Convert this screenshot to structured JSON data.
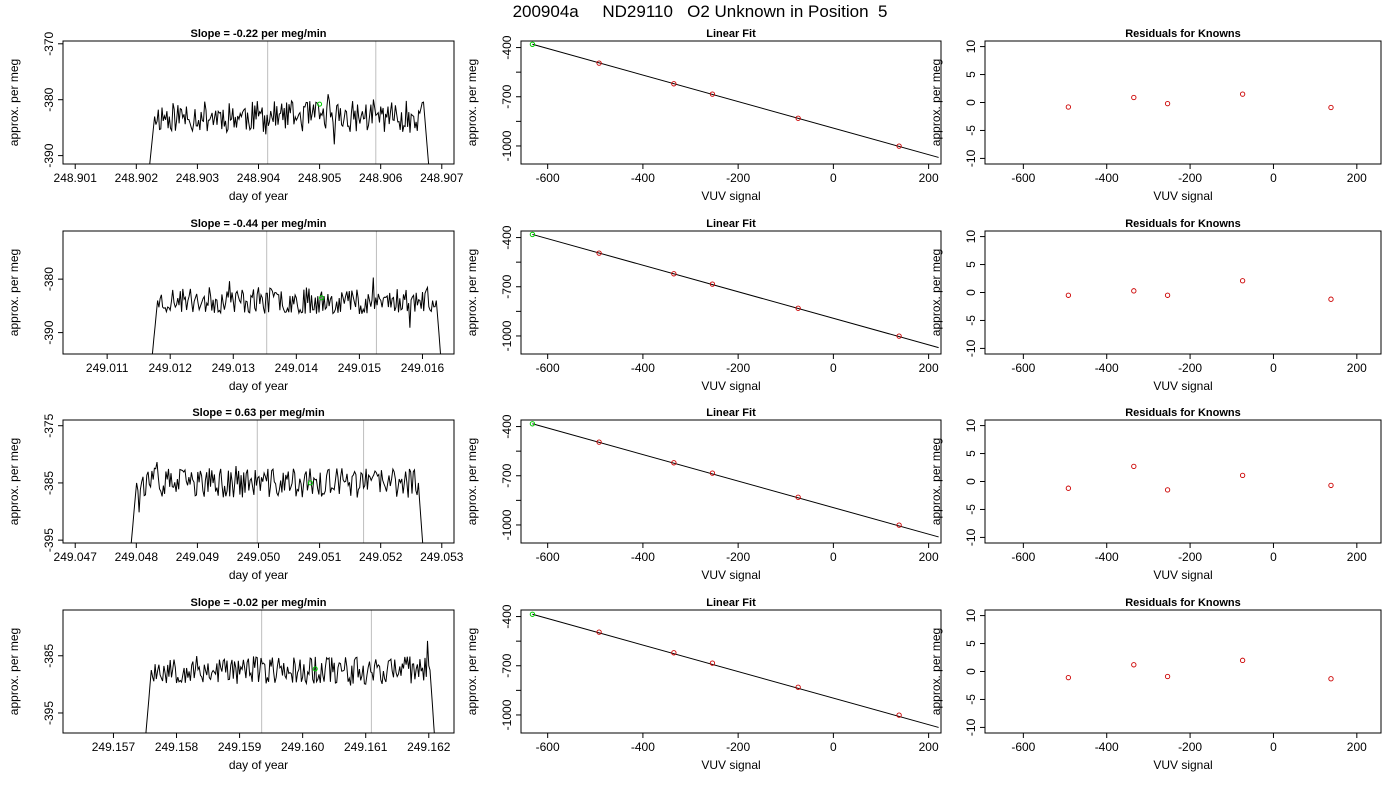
{
  "main_title": "200904a     ND29110   O2 Unknown in Position  5",
  "colors": {
    "trace": "#000000",
    "marker_green": "#00cc00",
    "known": "#cc0000",
    "vline": "#bebebe"
  },
  "chart_data": [
    {
      "type": "line",
      "row": 0,
      "col": 0,
      "title": "Slope =  -0.22  per meg/min",
      "xlabel": "day of year",
      "ylabel": "approx. per meg",
      "xlim": [
        248.9008,
        248.9072
      ],
      "ylim": [
        -391.5,
        -369.5
      ],
      "xticks": [
        248.901,
        248.902,
        248.903,
        248.904,
        248.905,
        248.906,
        248.907
      ],
      "xtick_labels": [
        "248.901",
        "248.902",
        "248.903",
        "248.904",
        "248.905",
        "248.906",
        "248.907"
      ],
      "yticks": [
        -370,
        -380,
        -390
      ],
      "ytick_labels": [
        "-370",
        "-380",
        "-390"
      ],
      "x_start": 248.9022,
      "x_end": 248.9068,
      "y_base": -383,
      "y_amp": 2.8,
      "seed": 11,
      "vlines": [
        248.90415,
        248.90592
      ],
      "highlight": {
        "x": 248.905,
        "y": -380.8
      }
    },
    {
      "type": "scatter",
      "row": 0,
      "col": 1,
      "title": "Linear Fit",
      "xlabel": "VUV signal",
      "ylabel": "approx. per meg",
      "xlim": [
        -656,
        226
      ],
      "ylim": [
        -1110,
        -360
      ],
      "xticks": [
        -600,
        -400,
        -200,
        0,
        200
      ],
      "xtick_labels": [
        "-600",
        "-400",
        "-200",
        "0",
        "200"
      ],
      "yticks": [
        -400,
        -700,
        -1000
      ],
      "ytick_labels": [
        "-400",
        "-700",
        "-1000"
      ],
      "minor_yticks": [
        -550,
        -850
      ],
      "fit_line": [
        [
          -632,
          -380
        ],
        [
          221,
          -1070
        ]
      ],
      "knowns": [
        [
          -492,
          -495
        ],
        [
          -335,
          -621
        ],
        [
          -254,
          -684
        ],
        [
          -74,
          -831
        ],
        [
          138,
          -1001
        ]
      ],
      "unknown": [
        -632,
        -380
      ]
    },
    {
      "type": "scatter",
      "row": 0,
      "col": 2,
      "title": "Residuals for Knowns",
      "xlabel": "VUV signal",
      "ylabel": "approx. per meg",
      "xlim": [
        -692,
        258
      ],
      "ylim": [
        -11,
        11
      ],
      "xticks": [
        -600,
        -400,
        -200,
        0,
        200
      ],
      "xtick_labels": [
        "-600",
        "-400",
        "-200",
        "0",
        "200"
      ],
      "yticks": [
        -10,
        -5,
        0,
        5,
        10
      ],
      "ytick_labels": [
        "-10",
        "-5",
        "0",
        "5",
        "10"
      ],
      "points": [
        [
          -492,
          -0.8
        ],
        [
          -335,
          0.9
        ],
        [
          -254,
          -0.2
        ],
        [
          -74,
          1.5
        ],
        [
          138,
          -0.9
        ]
      ]
    },
    {
      "type": "line",
      "row": 1,
      "col": 0,
      "title": "Slope =  -0.44  per meg/min",
      "xlabel": "day of year",
      "ylabel": "approx. per meg",
      "xlim": [
        249.0103,
        249.0165
      ],
      "ylim": [
        -394,
        -371
      ],
      "xticks": [
        249.011,
        249.012,
        249.013,
        249.014,
        249.015,
        249.016
      ],
      "xtick_labels": [
        "249.011",
        "249.012",
        "249.013",
        "249.014",
        "249.015",
        "249.016"
      ],
      "yticks": [
        -380,
        -390
      ],
      "ytick_labels": [
        "-380",
        "-390"
      ],
      "x_start": 249.0117,
      "x_end": 249.0163,
      "y_base": -384,
      "y_amp": 2.5,
      "seed": 23,
      "vlines": [
        249.01353,
        249.01527
      ],
      "highlight": {
        "x": 249.0144,
        "y": -383.5
      }
    },
    {
      "type": "scatter",
      "row": 1,
      "col": 1,
      "title": "Linear Fit",
      "xlabel": "VUV signal",
      "ylabel": "approx. per meg",
      "xlim": [
        -656,
        226
      ],
      "ylim": [
        -1110,
        -360
      ],
      "xticks": [
        -600,
        -400,
        -200,
        0,
        200
      ],
      "xtick_labels": [
        "-600",
        "-400",
        "-200",
        "0",
        "200"
      ],
      "yticks": [
        -400,
        -700,
        -1000
      ],
      "ytick_labels": [
        "-400",
        "-700",
        "-1000"
      ],
      "minor_yticks": [
        -550,
        -850
      ],
      "fit_line": [
        [
          -632,
          -381
        ],
        [
          221,
          -1071
        ]
      ],
      "knowns": [
        [
          -492,
          -495
        ],
        [
          -335,
          -621
        ],
        [
          -254,
          -684
        ],
        [
          -74,
          -831
        ],
        [
          138,
          -1001
        ]
      ],
      "unknown": [
        -632,
        -381
      ]
    },
    {
      "type": "scatter",
      "row": 1,
      "col": 2,
      "title": "Residuals for Knowns",
      "xlabel": "VUV signal",
      "ylabel": "approx. per meg",
      "xlim": [
        -692,
        258
      ],
      "ylim": [
        -11,
        11
      ],
      "xticks": [
        -600,
        -400,
        -200,
        0,
        200
      ],
      "xtick_labels": [
        "-600",
        "-400",
        "-200",
        "0",
        "200"
      ],
      "yticks": [
        -10,
        -5,
        0,
        5,
        10
      ],
      "ytick_labels": [
        "-10",
        "-5",
        "0",
        "5",
        "10"
      ],
      "points": [
        [
          -492,
          -0.5
        ],
        [
          -335,
          0.3
        ],
        [
          -254,
          -0.5
        ],
        [
          -74,
          2.1
        ],
        [
          138,
          -1.2
        ]
      ]
    },
    {
      "type": "line",
      "row": 2,
      "col": 0,
      "title": "Slope =  0.63  per meg/min",
      "xlabel": "day of year",
      "ylabel": "approx. per meg",
      "xlim": [
        249.0468,
        249.0532
      ],
      "ylim": [
        -395.5,
        -374
      ],
      "xticks": [
        249.047,
        249.048,
        249.049,
        249.05,
        249.051,
        249.052,
        249.053
      ],
      "xtick_labels": [
        "249.047",
        "249.048",
        "249.049",
        "249.050",
        "249.051",
        "249.052",
        "249.053"
      ],
      "yticks": [
        -375,
        -385,
        -395
      ],
      "ytick_labels": [
        "-375",
        "-385",
        "-395"
      ],
      "x_start": 249.0479,
      "x_end": 249.0527,
      "y_base": -385,
      "y_amp": 2.6,
      "seed": 37,
      "vlines": [
        249.04998,
        249.05172
      ],
      "highlight": {
        "x": 249.05085,
        "y": -385
      }
    },
    {
      "type": "scatter",
      "row": 2,
      "col": 1,
      "title": "Linear Fit",
      "xlabel": "VUV signal",
      "ylabel": "approx. per meg",
      "xlim": [
        -656,
        226
      ],
      "ylim": [
        -1110,
        -360
      ],
      "xticks": [
        -600,
        -400,
        -200,
        0,
        200
      ],
      "xtick_labels": [
        "-600",
        "-400",
        "-200",
        "0",
        "200"
      ],
      "yticks": [
        -400,
        -700,
        -1000
      ],
      "ytick_labels": [
        "-400",
        "-700",
        "-1000"
      ],
      "minor_yticks": [
        -550,
        -850
      ],
      "fit_line": [
        [
          -632,
          -383
        ],
        [
          221,
          -1073
        ]
      ],
      "knowns": [
        [
          -492,
          -495
        ],
        [
          -335,
          -621
        ],
        [
          -254,
          -684
        ],
        [
          -74,
          -831
        ],
        [
          138,
          -1001
        ]
      ],
      "unknown": [
        -632,
        -383
      ]
    },
    {
      "type": "scatter",
      "row": 2,
      "col": 2,
      "title": "Residuals for Knowns",
      "xlabel": "VUV signal",
      "ylabel": "approx. per meg",
      "xlim": [
        -692,
        258
      ],
      "ylim": [
        -11,
        11
      ],
      "xticks": [
        -600,
        -400,
        -200,
        0,
        200
      ],
      "xtick_labels": [
        "-600",
        "-400",
        "-200",
        "0",
        "200"
      ],
      "yticks": [
        -10,
        -5,
        0,
        5,
        10
      ],
      "ytick_labels": [
        "-10",
        "-5",
        "0",
        "5",
        "10"
      ],
      "points": [
        [
          -492,
          -1.2
        ],
        [
          -335,
          2.7
        ],
        [
          -254,
          -1.5
        ],
        [
          -74,
          1.1
        ],
        [
          138,
          -0.7
        ]
      ]
    },
    {
      "type": "line",
      "row": 3,
      "col": 0,
      "title": "Slope =  -0.02  per meg/min",
      "xlabel": "day of year",
      "ylabel": "approx. per meg",
      "xlim": [
        249.1562,
        249.1624
      ],
      "ylim": [
        -398.5,
        -377
      ],
      "xticks": [
        249.157,
        249.158,
        249.159,
        249.16,
        249.161,
        249.162
      ],
      "xtick_labels": [
        "249.157",
        "249.158",
        "249.159",
        "249.160",
        "249.161",
        "249.162"
      ],
      "yticks": [
        -385,
        -395
      ],
      "ytick_labels": [
        "-385",
        "-395"
      ],
      "x_start": 249.1575,
      "x_end": 249.1621,
      "y_base": -387.5,
      "y_amp": 2.5,
      "seed": 53,
      "vlines": [
        249.15935,
        249.16109
      ],
      "highlight": {
        "x": 249.1602,
        "y": -387.3
      }
    },
    {
      "type": "scatter",
      "row": 3,
      "col": 1,
      "title": "Linear Fit",
      "xlabel": "VUV signal",
      "ylabel": "approx. per meg",
      "xlim": [
        -656,
        226
      ],
      "ylim": [
        -1110,
        -360
      ],
      "xticks": [
        -600,
        -400,
        -200,
        0,
        200
      ],
      "xtick_labels": [
        "-600",
        "-400",
        "-200",
        "0",
        "200"
      ],
      "yticks": [
        -400,
        -700,
        -1000
      ],
      "ytick_labels": [
        "-400",
        "-700",
        "-1000"
      ],
      "minor_yticks": [
        -550,
        -850
      ],
      "fit_line": [
        [
          -632,
          -386
        ],
        [
          221,
          -1076
        ]
      ],
      "knowns": [
        [
          -492,
          -495
        ],
        [
          -335,
          -621
        ],
        [
          -254,
          -684
        ],
        [
          -74,
          -831
        ],
        [
          138,
          -1001
        ]
      ],
      "unknown": [
        -632,
        -386
      ]
    },
    {
      "type": "scatter",
      "row": 3,
      "col": 2,
      "title": "Residuals for Knowns",
      "xlabel": "VUV signal",
      "ylabel": "approx. per meg",
      "xlim": [
        -692,
        258
      ],
      "ylim": [
        -11,
        11
      ],
      "xticks": [
        -600,
        -400,
        -200,
        0,
        200
      ],
      "xtick_labels": [
        "-600",
        "-400",
        "-200",
        "0",
        "200"
      ],
      "yticks": [
        -10,
        -5,
        0,
        5,
        10
      ],
      "ytick_labels": [
        "-10",
        "-5",
        "0",
        "5",
        "10"
      ],
      "points": [
        [
          -492,
          -1.1
        ],
        [
          -335,
          1.2
        ],
        [
          -254,
          -0.9
        ],
        [
          -74,
          2.0
        ],
        [
          138,
          -1.3
        ]
      ]
    }
  ]
}
